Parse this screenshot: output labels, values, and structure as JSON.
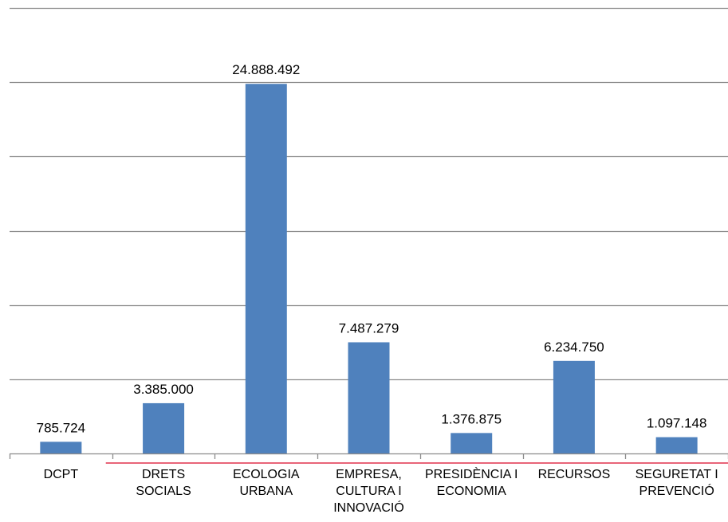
{
  "chart_data": {
    "type": "bar",
    "categories": [
      [
        "DCPT"
      ],
      [
        "DRETS",
        "SOCIALS"
      ],
      [
        "ECOLOGIA",
        "URBANA"
      ],
      [
        "EMPRESA,",
        "CULTURA I",
        "INNOVACIÓ"
      ],
      [
        "PRESIDÈNCIA I",
        "ECONOMIA"
      ],
      [
        "RECURSOS"
      ],
      [
        "SEGURETAT I",
        "PREVENCIÓ"
      ]
    ],
    "values": [
      785724,
      3385000,
      24888492,
      7487279,
      1376875,
      6234750,
      1097148
    ],
    "data_labels": [
      "785.724",
      "3.385.000",
      "24.888.492",
      "7.487.279",
      "1.376.875",
      "6.234.750",
      "1.097.148"
    ],
    "ylim": [
      0,
      30000000
    ],
    "ytick_step": 5000000,
    "grid": true,
    "legend": "none",
    "colors": {
      "bar": "#4F81BD",
      "grid": "#8C8C8C",
      "axis": "#8C8C8C",
      "accent_line": "#E0314B"
    }
  }
}
